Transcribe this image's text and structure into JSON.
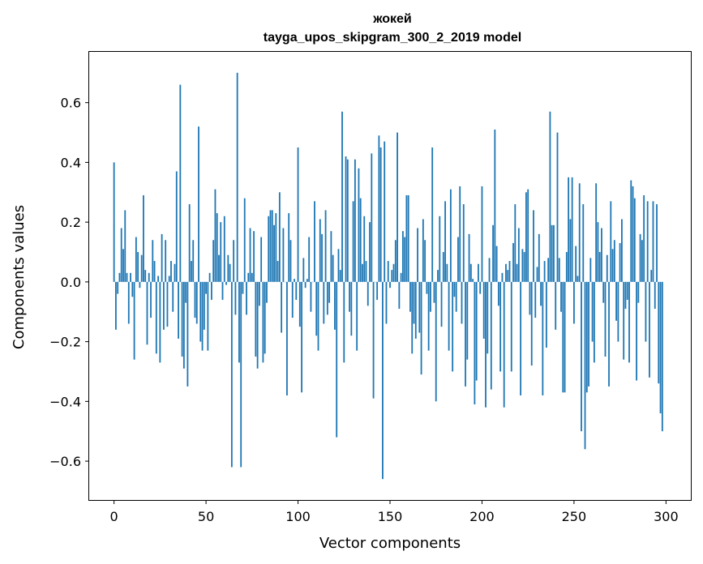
{
  "chart_data": {
    "type": "bar",
    "title": "жокей",
    "subtitle": "tayga_upos_skipgram_300_2_2019 model",
    "xlabel": "Vector components",
    "ylabel": "Components values",
    "xlim": [
      -13.5,
      313.5
    ],
    "ylim": [
      -0.73,
      0.77
    ],
    "xticks": [
      0,
      50,
      100,
      150,
      200,
      250,
      300
    ],
    "yticks": [
      -0.6,
      -0.4,
      -0.2,
      0.0,
      0.2,
      0.4,
      0.6
    ],
    "ytick_labels": [
      "−0.6",
      "−0.4",
      "−0.2",
      "0.0",
      "0.2",
      "0.4",
      "0.6"
    ],
    "color": "#1f77b4",
    "grid": false,
    "values": [
      0.4,
      -0.16,
      -0.04,
      0.03,
      0.18,
      0.11,
      0.24,
      0.03,
      -0.14,
      0.03,
      -0.05,
      -0.26,
      0.15,
      0.1,
      -0.02,
      0.09,
      0.29,
      0.04,
      -0.21,
      0.03,
      -0.12,
      0.14,
      0.07,
      -0.24,
      0.02,
      -0.27,
      0.16,
      -0.16,
      0.14,
      -0.15,
      0.02,
      0.07,
      -0.1,
      0.06,
      0.37,
      -0.19,
      0.66,
      -0.25,
      -0.29,
      -0.07,
      -0.35,
      0.26,
      0.07,
      0.14,
      -0.12,
      -0.14,
      0.52,
      -0.2,
      -0.23,
      -0.16,
      -0.04,
      -0.23,
      0.03,
      -0.06,
      0.14,
      0.31,
      0.23,
      0.09,
      0.2,
      -0.06,
      0.22,
      -0.01,
      0.09,
      0.06,
      -0.62,
      0.14,
      -0.11,
      0.7,
      -0.27,
      -0.62,
      -0.04,
      0.28,
      -0.11,
      0.03,
      0.18,
      0.03,
      0.17,
      -0.25,
      -0.29,
      -0.08,
      0.15,
      -0.27,
      -0.24,
      -0.07,
      0.22,
      0.24,
      0.24,
      0.19,
      0.23,
      0.07,
      0.3,
      -0.17,
      0.18,
      0.0,
      -0.38,
      0.23,
      0.14,
      -0.12,
      0.01,
      -0.06,
      0.45,
      -0.15,
      -0.37,
      0.08,
      -0.02,
      0.01,
      0.15,
      -0.1,
      0.0,
      0.27,
      -0.18,
      -0.23,
      0.21,
      0.16,
      -0.14,
      0.24,
      -0.11,
      -0.07,
      0.17,
      0.09,
      -0.16,
      -0.52,
      0.11,
      0.04,
      0.57,
      -0.27,
      0.42,
      0.41,
      -0.1,
      -0.18,
      0.27,
      0.41,
      -0.23,
      0.38,
      0.28,
      0.06,
      0.22,
      0.07,
      -0.08,
      0.2,
      0.43,
      -0.39,
      0.0,
      -0.06,
      0.49,
      0.45,
      -0.66,
      0.47,
      -0.14,
      0.07,
      -0.02,
      0.04,
      0.06,
      0.14,
      0.5,
      -0.09,
      0.03,
      0.17,
      0.15,
      0.29,
      0.29,
      -0.1,
      -0.24,
      -0.14,
      -0.19,
      0.18,
      -0.17,
      -0.31,
      0.21,
      0.14,
      -0.04,
      -0.23,
      -0.1,
      0.45,
      -0.07,
      -0.4,
      0.04,
      0.22,
      -0.15,
      0.1,
      0.27,
      0.06,
      -0.23,
      0.31,
      -0.3,
      -0.05,
      -0.1,
      0.15,
      0.32,
      -0.14,
      0.26,
      -0.35,
      -0.26,
      0.16,
      0.06,
      0.01,
      -0.41,
      -0.33,
      0.06,
      -0.04,
      0.32,
      -0.19,
      -0.42,
      -0.24,
      0.08,
      -0.36,
      0.19,
      0.51,
      0.12,
      -0.08,
      -0.3,
      0.03,
      -0.42,
      0.06,
      0.04,
      0.07,
      -0.3,
      0.13,
      0.26,
      0.06,
      0.18,
      -0.38,
      0.11,
      0.1,
      0.3,
      0.31,
      -0.11,
      -0.28,
      0.24,
      -0.12,
      0.05,
      0.16,
      -0.08,
      -0.38,
      0.07,
      -0.22,
      0.08,
      0.57,
      0.19,
      0.19,
      -0.16,
      0.5,
      0.08,
      -0.1,
      -0.37,
      -0.37,
      0.1,
      0.35,
      0.21,
      0.35,
      -0.14,
      0.12,
      0.02,
      0.33,
      -0.5,
      0.26,
      -0.56,
      -0.37,
      -0.35,
      0.08,
      -0.2,
      -0.27,
      0.33,
      0.2,
      0.1,
      0.18,
      -0.07,
      -0.25,
      0.09,
      -0.35,
      0.27,
      0.11,
      0.14,
      -0.13,
      -0.2,
      0.13,
      0.21,
      -0.26,
      -0.09,
      -0.06,
      -0.27,
      0.34,
      0.32,
      0.28,
      -0.33,
      -0.07,
      0.16,
      0.14,
      0.29,
      -0.2,
      0.27,
      -0.32,
      0.04,
      0.27,
      -0.09,
      0.26,
      -0.34,
      -0.44,
      -0.5
    ]
  }
}
